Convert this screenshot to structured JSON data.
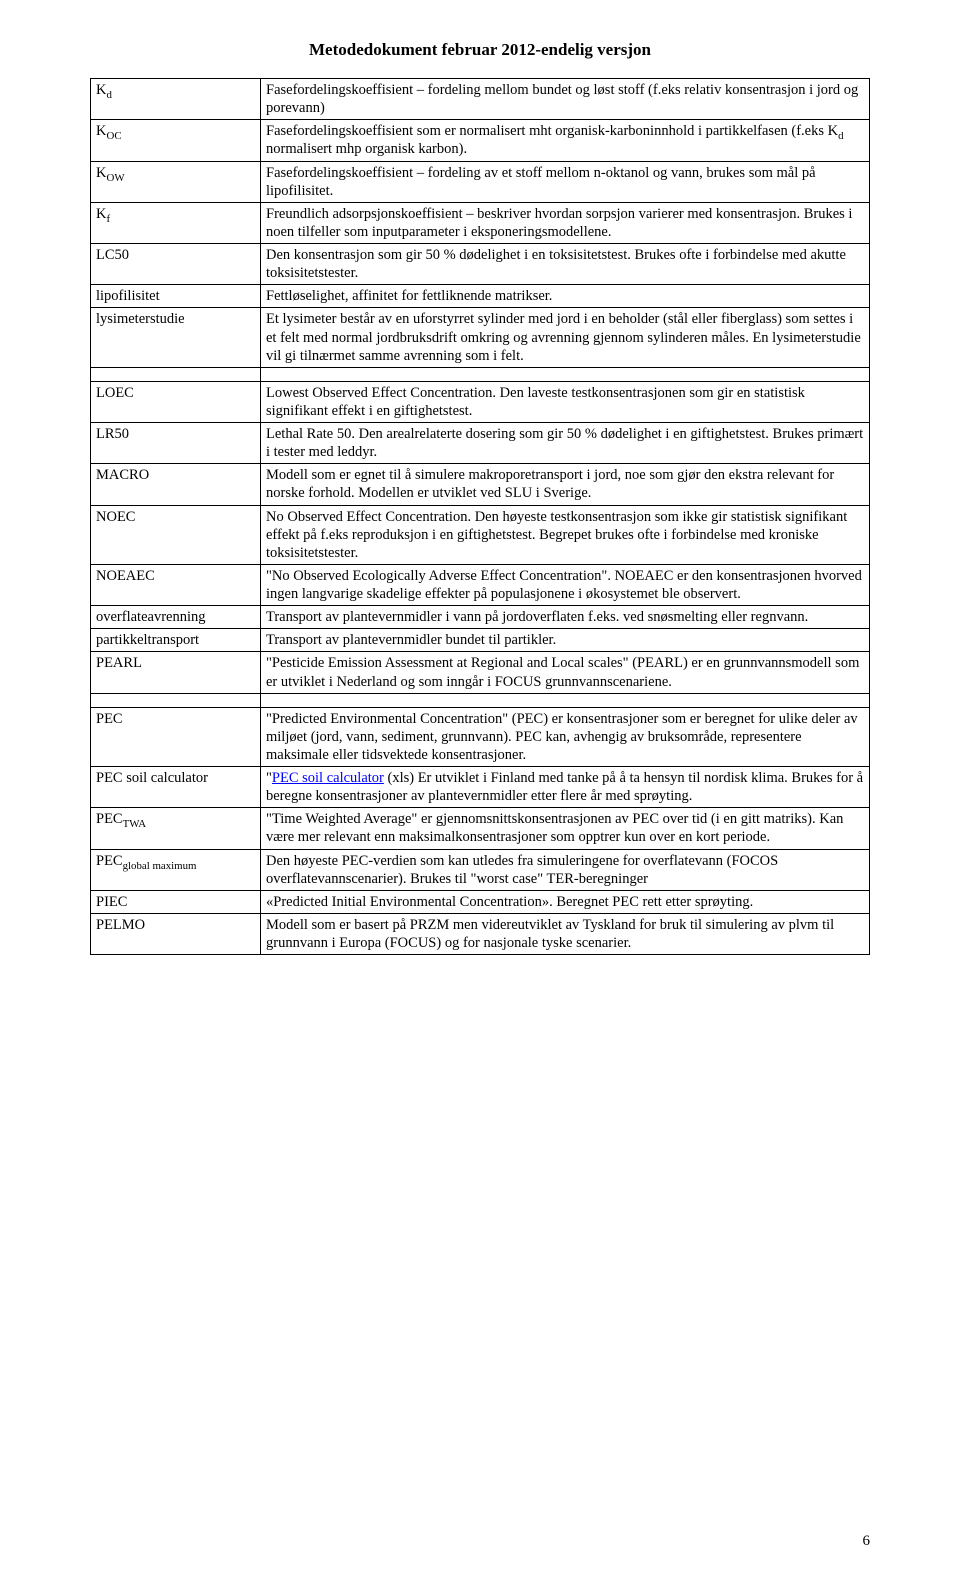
{
  "header": "Metodedokument februar 2012-endelig versjon",
  "footer": "6",
  "colors": {
    "background": "#ffffff",
    "text": "#000000",
    "link": "#0000ff",
    "border": "#000000"
  },
  "terms": {
    "kd": {
      "label": "K",
      "sub": "d"
    },
    "koc": {
      "label": "K",
      "sub": "OC"
    },
    "kow": {
      "label": "K",
      "sub": "OW"
    },
    "kf": {
      "label": "K",
      "sub": "f"
    },
    "lc50": "LC50",
    "lipo": "lipofilisitet",
    "lysi": "lysimeterstudie",
    "loec": "LOEC",
    "lr50": "LR50",
    "macro": "MACRO",
    "noec": "NOEC",
    "noeaec": "NOEAEC",
    "overflate": "overflateavrenning",
    "partikkel": "partikkeltransport",
    "pearl": "PEARL",
    "pec": "PEC",
    "pecsoil": "PEC soil calculator",
    "pectwa": {
      "label": "PEC",
      "sub": "TWA"
    },
    "pecglobal": {
      "label": "PEC",
      "sub": "global maximum"
    },
    "piec": "PIEC",
    "pelmo": "PELMO"
  },
  "defs": {
    "kd_1": "Fasefordelingskoeffisient – fordeling mellom bundet og løst stoff (f.eks relativ konsentrasjon i jord og porevann)",
    "koc_1": "Fasefordelingskoeffisient som er normalisert mht organisk-karboninnhold i partikkelfasen (f.eks K",
    "koc_sub": "d",
    "koc_2": " normalisert mhp organisk karbon).",
    "kow": "Fasefordelingskoeffisient – fordeling av et stoff mellom n-oktanol og vann, brukes som mål på lipofilisitet.",
    "kf": "Freundlich adsorpsjonskoeffisient – beskriver hvordan sorpsjon varierer med konsentrasjon. Brukes i noen tilfeller som inputparameter i eksponeringsmodellene.",
    "lc50": "Den konsentrasjon som gir 50 % dødelighet i en toksisitetstest. Brukes ofte i forbindelse med akutte toksisitetstester.",
    "lipo": "Fettløselighet, affinitet for fettliknende matrikser.",
    "lysi": "Et lysimeter består av en uforstyrret sylinder med jord i en beholder (stål eller fiberglass) som settes i et felt med normal jordbruksdrift omkring og avrenning gjennom sylinderen måles. En lysimeterstudie vil gi tilnærmet samme avrenning som i felt.",
    "loec": "Lowest Observed Effect Concentration. Den laveste testkonsentrasjonen som gir en statistisk signifikant effekt i en giftighetstest.",
    "lr50": "Lethal Rate 50. Den arealrelaterte dosering som gir 50 % dødelighet i en giftighetstest. Brukes primært i tester med leddyr.",
    "macro": "Modell som er egnet til å simulere makroporetransport i jord, noe som gjør den ekstra relevant for norske forhold. Modellen er utviklet ved SLU i Sverige.",
    "noec": "No Observed Effect Concentration. Den høyeste testkonsentrasjon som ikke gir statistisk signifikant effekt på f.eks reproduksjon i en giftighetstest. Begrepet brukes ofte i forbindelse med kroniske toksisitetstester.",
    "noeaec": "\"No Observed Ecologically Adverse Effect Concentration\". NOEAEC er den konsentrasjonen hvorved ingen langvarige skadelige effekter på populasjonene i økosystemet ble observert.",
    "overflate": "Transport av plantevernmidler i vann på jordoverflaten f.eks. ved snøsmelting eller regnvann.",
    "partikkel": "Transport av plantevernmidler bundet til partikler.",
    "pearl": " \"Pesticide Emission Assessment at Regional and Local scales\" (PEARL) er en grunnvannsmodell som er utviklet i Nederland og som inngår i FOCUS grunnvannscenariene.",
    "pec": "\"Predicted Environmental Concentration\" (PEC) er konsentrasjoner som er beregnet for ulike deler av miljøet (jord, vann, sediment, grunnvann). PEC kan, avhengig av bruksområde, representere maksimale eller tidsvektede konsentrasjoner.",
    "pecsoil_pre": "\"",
    "pecsoil_link": "PEC soil calculator",
    "pecsoil_post": " (xls) Er utviklet i Finland med tanke på å ta hensyn til nordisk klima. Brukes for å beregne konsentrasjoner av plantevernmidler etter flere år med sprøyting.",
    "pectwa": "\"Time Weighted Average\" er gjennomsnittskonsentrasjonen av PEC over tid (i en gitt matriks). Kan være mer relevant enn maksimalkonsentrasjoner som opptrer kun over en kort periode.",
    "pecglobal": "Den høyeste PEC-verdien som kan utledes fra simuleringene for overflatevann (FOCOS overflatevannscenarier). Brukes til \"worst case\" TER-beregninger",
    "piec": "«Predicted Initial Environmental Concentration». Beregnet PEC rett etter sprøyting.",
    "pelmo": "Modell som er basert på PRZM men videreutviklet av Tyskland for bruk til simulering av plvm til grunnvann i Europa (FOCUS) og for nasjonale tyske scenarier."
  }
}
